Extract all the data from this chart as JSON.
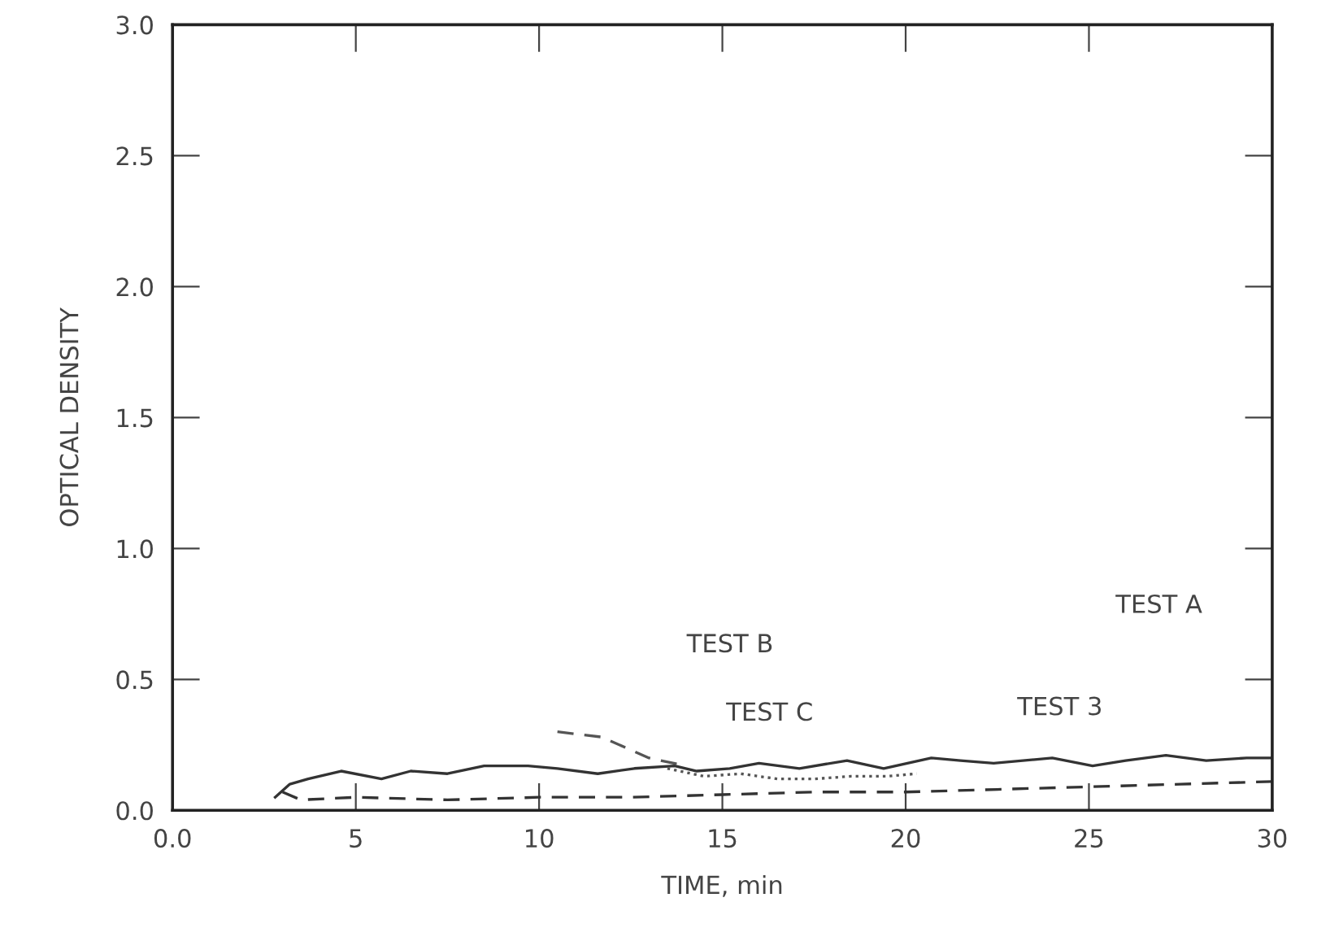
{
  "chart_data": {
    "type": "line",
    "xlabel": "TIME, min",
    "ylabel": "OPTICAL DENSITY",
    "xlim": [
      0,
      30
    ],
    "ylim": [
      0,
      3.0
    ],
    "xticks": [
      {
        "value": 0,
        "label": "0.0"
      },
      5,
      10,
      15,
      20,
      25,
      30
    ],
    "yticks": [
      {
        "value": 0,
        "label": "0.0"
      },
      0.5,
      {
        "value": 1,
        "label": "1.0"
      },
      1.5,
      {
        "value": 2,
        "label": "2.0"
      },
      2.5,
      {
        "value": 3,
        "label": "3.0"
      }
    ],
    "grid": false,
    "marker": "none",
    "series": [
      {
        "color": "#333333",
        "line_style": "solid",
        "x": [
          2.8,
          3.2,
          3.7,
          4.6,
          5.7,
          6.5,
          7.5,
          8.5,
          9.7,
          10.5,
          11.6,
          12.6,
          13.7,
          14.3,
          15.2,
          16,
          17.1,
          18.4,
          19.4,
          20.7,
          21.5,
          22.4,
          24,
          25.1,
          26,
          27.1,
          28.2,
          29.3,
          30
        ],
        "values": [
          0.05,
          0.1,
          0.12,
          0.15,
          0.12,
          0.15,
          0.14,
          0.17,
          0.17,
          0.16,
          0.14,
          0.16,
          0.17,
          0.15,
          0.16,
          0.18,
          0.16,
          0.19,
          0.16,
          0.2,
          0.19,
          0.18,
          0.2,
          0.17,
          0.19,
          0.21,
          0.19,
          0.2,
          0.2
        ]
      },
      {
        "color": "#333333",
        "line_style": "dashed",
        "x": [
          3.0,
          3.5,
          5,
          7.5,
          10,
          12.5,
          15,
          17.5,
          20,
          22.5,
          25,
          27.5,
          30
        ],
        "values": [
          0.07,
          0.04,
          0.05,
          0.04,
          0.05,
          0.05,
          0.06,
          0.07,
          0.07,
          0.08,
          0.09,
          0.1,
          0.11
        ]
      },
      {
        "color": "#555555",
        "line_style": "dotted",
        "x": [
          13.5,
          14.5,
          15.5,
          16.5,
          17.5,
          18.5,
          19.5,
          20.3
        ],
        "values": [
          0.16,
          0.13,
          0.14,
          0.12,
          0.12,
          0.13,
          0.13,
          0.14
        ]
      },
      {
        "color": "#555555",
        "line_style": "dashed",
        "x": [
          10.5,
          11.7,
          13.0,
          14.0
        ],
        "values": [
          0.3,
          0.28,
          0.2,
          0.17
        ]
      }
    ],
    "annotations": [
      "TEST A",
      "TEST B",
      "TEST C",
      "TEST 3"
    ]
  }
}
